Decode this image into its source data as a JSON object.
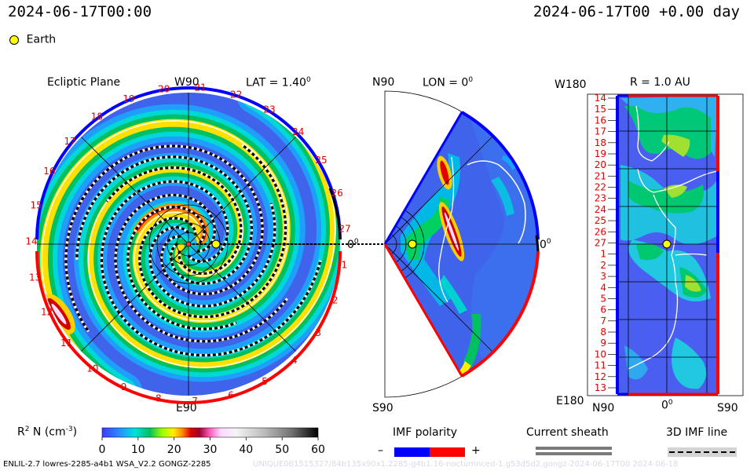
{
  "header": {
    "left_timestamp": "2024-06-17T00:00",
    "right_timestamp": "2024-06-17T00 +0.00 day"
  },
  "legend": {
    "earth_label": "Earth",
    "earth_color": "#ffff00"
  },
  "ecliptic": {
    "title": "Ecliptic Plane",
    "lat_label": "LAT = 1.40",
    "lat_sup": "0",
    "top_label": "W90",
    "bottom_label": "E90",
    "zero_label": "0",
    "zero_sup": "0",
    "rotation_numbers": [
      "17",
      "18",
      "19",
      "20",
      "21",
      "22",
      "23",
      "24",
      "25",
      "26",
      "27",
      "1",
      "2",
      "3",
      "4",
      "5",
      "6",
      "7",
      "8",
      "9",
      "10",
      "11",
      "12",
      "13",
      "14",
      "15",
      "16"
    ]
  },
  "meridional": {
    "top_label": "N90",
    "lon_label": "LON = 0",
    "lon_sup": "0",
    "bottom_label": "S90",
    "zero_label": "0",
    "zero_sup": "0"
  },
  "radial_map": {
    "top_left_label": "W180",
    "title": "R = 1.0 AU",
    "bottom_left_label": "E180",
    "x_labels": [
      "N90",
      "0",
      "S90"
    ],
    "x_zero_sup": "0",
    "y_labels": [
      "14",
      "15",
      "16",
      "17",
      "18",
      "19",
      "20",
      "21",
      "22",
      "23",
      "24",
      "25",
      "26",
      "27",
      "1",
      "2",
      "3",
      "4",
      "5",
      "6",
      "7",
      "8",
      "9",
      "10",
      "11",
      "12",
      "13"
    ]
  },
  "colorbar": {
    "label": "R",
    "label_sup": "2",
    "label_rest": " N (cm",
    "label_unit_sup": "-3",
    "label_end": ")",
    "ticks": [
      "0",
      "10",
      "20",
      "30",
      "40",
      "50",
      "60"
    ],
    "min": 0,
    "max": 60
  },
  "imf_legend": {
    "title": "IMF polarity",
    "minus": "–",
    "plus": "+",
    "minus_color": "#0000ff",
    "plus_color": "#ff0000"
  },
  "sheath_legend": {
    "title": "Current sheath"
  },
  "imf_line_legend": {
    "title": "3D IMF line"
  },
  "footer": {
    "left": "ENLIL-2.7 lowres-2285-a4b1 WSA_V2.2 GONGZ-2285",
    "right": "UNIQUE061515327/84b135x90x1.2285-g4b1.16-noctumnced-1.g53d5d2.gongz-2024-06-17T00   2024-06-18"
  },
  "chart_data": {
    "type": "heatmap",
    "variable": "R² N (cm⁻³)",
    "colorbar_range": [
      0,
      60
    ],
    "colorbar_ticks": [
      0,
      10,
      20,
      30,
      40,
      50,
      60
    ],
    "earth_position": {
      "lat_deg": 1.4,
      "lon_deg": 0,
      "r_au": 1.0
    },
    "radial_map_y_ticks": [
      14,
      15,
      16,
      17,
      18,
      19,
      20,
      21,
      22,
      23,
      24,
      25,
      26,
      27,
      1,
      2,
      3,
      4,
      5,
      6,
      7,
      8,
      9,
      10,
      11,
      12,
      13
    ],
    "radial_map_x_ticks": [
      "N90",
      "0",
      "S90"
    ]
  }
}
